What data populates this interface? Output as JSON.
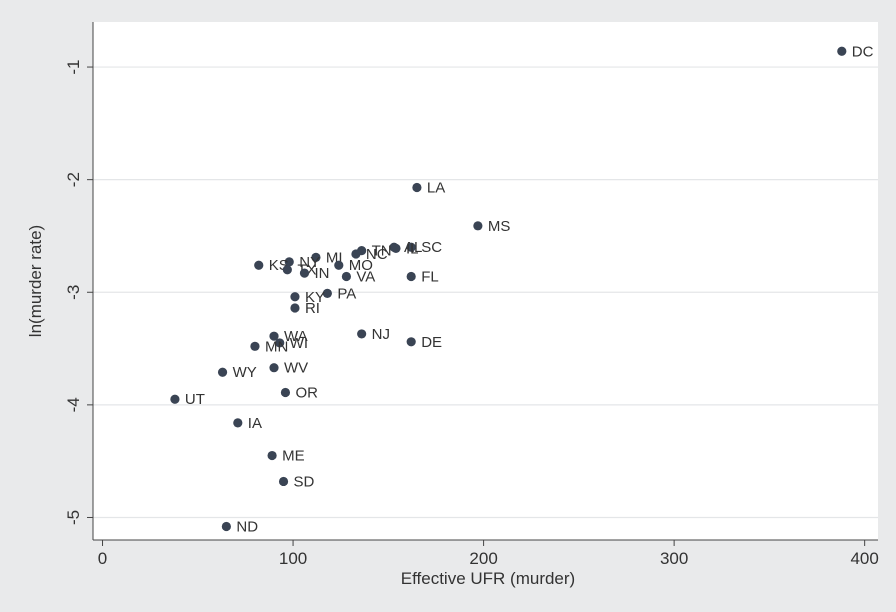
{
  "chart_data": {
    "type": "scatter",
    "title": "",
    "xlabel": "Effective UFR (murder)",
    "ylabel": "ln(murder rate)",
    "xlim": [
      -5,
      407
    ],
    "ylim": [
      -5.2,
      -0.6
    ],
    "xticks": [
      0,
      100,
      200,
      300,
      400
    ],
    "yticks": [
      -1,
      -2,
      -3,
      -4,
      -5
    ],
    "grid": "horizontal",
    "marker_color": "#3a4454",
    "points": [
      {
        "label": "DC",
        "x": 388,
        "y": -0.86
      },
      {
        "label": "LA",
        "x": 165,
        "y": -2.07
      },
      {
        "label": "MS",
        "x": 197,
        "y": -2.41
      },
      {
        "label": "AL",
        "x": 153,
        "y": -2.6
      },
      {
        "label": "SC",
        "x": 162,
        "y": -2.6
      },
      {
        "label": "IL",
        "x": 154,
        "y": -2.61
      },
      {
        "label": "TN",
        "x": 136,
        "y": -2.63
      },
      {
        "label": "NC",
        "x": 133,
        "y": -2.66
      },
      {
        "label": "MI",
        "x": 112,
        "y": -2.69
      },
      {
        "label": "NY",
        "x": 98,
        "y": -2.73
      },
      {
        "label": "KS",
        "x": 82,
        "y": -2.76
      },
      {
        "label": "MO",
        "x": 124,
        "y": -2.76
      },
      {
        "label": "TX",
        "x": 97,
        "y": -2.8
      },
      {
        "label": "IN",
        "x": 106,
        "y": -2.83
      },
      {
        "label": "VA",
        "x": 128,
        "y": -2.86
      },
      {
        "label": "FL",
        "x": 162,
        "y": -2.86
      },
      {
        "label": "PA",
        "x": 118,
        "y": -3.01
      },
      {
        "label": "KY",
        "x": 101,
        "y": -3.04
      },
      {
        "label": "RI",
        "x": 101,
        "y": -3.14
      },
      {
        "label": "NJ",
        "x": 136,
        "y": -3.37
      },
      {
        "label": "WA",
        "x": 90,
        "y": -3.39
      },
      {
        "label": "DE",
        "x": 162,
        "y": -3.44
      },
      {
        "label": "WI",
        "x": 93,
        "y": -3.45
      },
      {
        "label": "MN",
        "x": 80,
        "y": -3.48
      },
      {
        "label": "WV",
        "x": 90,
        "y": -3.67
      },
      {
        "label": "WY",
        "x": 63,
        "y": -3.71
      },
      {
        "label": "OR",
        "x": 96,
        "y": -3.89
      },
      {
        "label": "UT",
        "x": 38,
        "y": -3.95
      },
      {
        "label": "IA",
        "x": 71,
        "y": -4.16
      },
      {
        "label": "ME",
        "x": 89,
        "y": -4.45
      },
      {
        "label": "SD",
        "x": 95,
        "y": -4.68
      },
      {
        "label": "ND",
        "x": 65,
        "y": -5.08
      }
    ]
  }
}
